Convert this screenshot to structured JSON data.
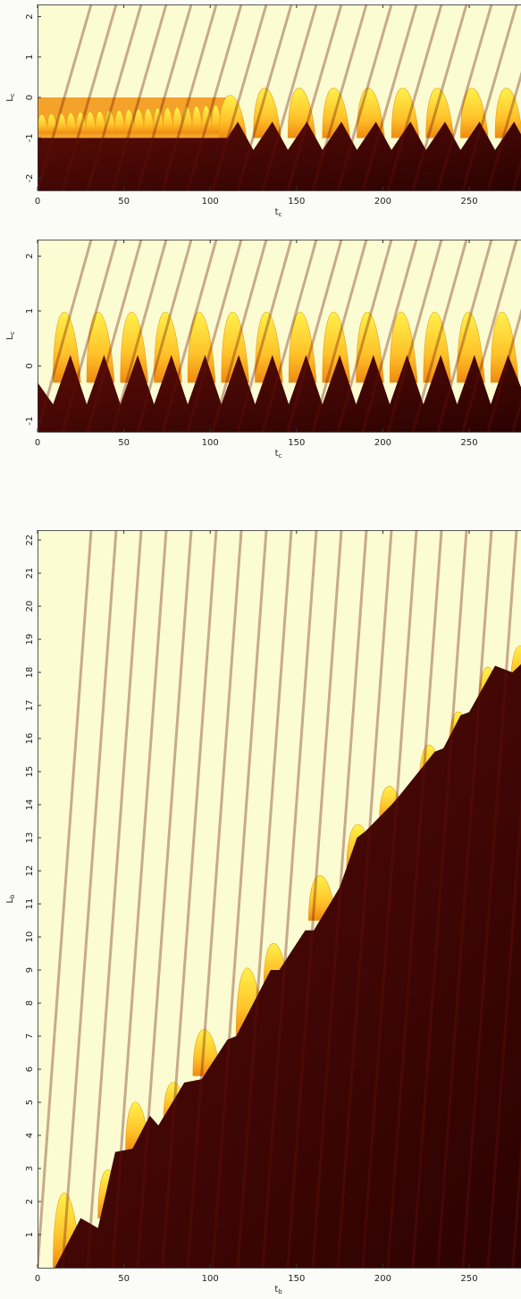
{
  "chart_data": [
    {
      "type": "heatmap",
      "xlabel": "t",
      "xlabel_subscript": "c",
      "ylabel": "L",
      "ylabel_subscript": "c",
      "xlim": [
        0,
        280
      ],
      "ylim": [
        -2.3,
        2.3
      ],
      "xticks": [
        0,
        50,
        100,
        150,
        200,
        250
      ],
      "yticks": [
        -2,
        -1,
        0,
        1,
        2
      ]
    },
    {
      "type": "heatmap",
      "xlabel": "t",
      "xlabel_subscript": "c",
      "ylabel": "L",
      "ylabel_subscript": "c",
      "xlim": [
        0,
        280
      ],
      "ylim": [
        -1.2,
        2.3
      ],
      "xticks": [
        0,
        50,
        100,
        150,
        200,
        250
      ],
      "yticks": [
        -1,
        0,
        1,
        2
      ]
    },
    {
      "type": "heatmap",
      "xlabel": "t",
      "xlabel_subscript": "b",
      "ylabel": "L",
      "ylabel_subscript": "b",
      "xlim": [
        0,
        280
      ],
      "ylim": [
        0,
        22.3
      ],
      "xticks": [
        0,
        50,
        100,
        150,
        200,
        250
      ],
      "yticks": [
        1,
        2,
        3,
        4,
        5,
        6,
        7,
        8,
        9,
        10,
        11,
        12,
        13,
        14,
        15,
        16,
        17,
        18,
        19,
        20,
        21,
        22
      ]
    }
  ]
}
